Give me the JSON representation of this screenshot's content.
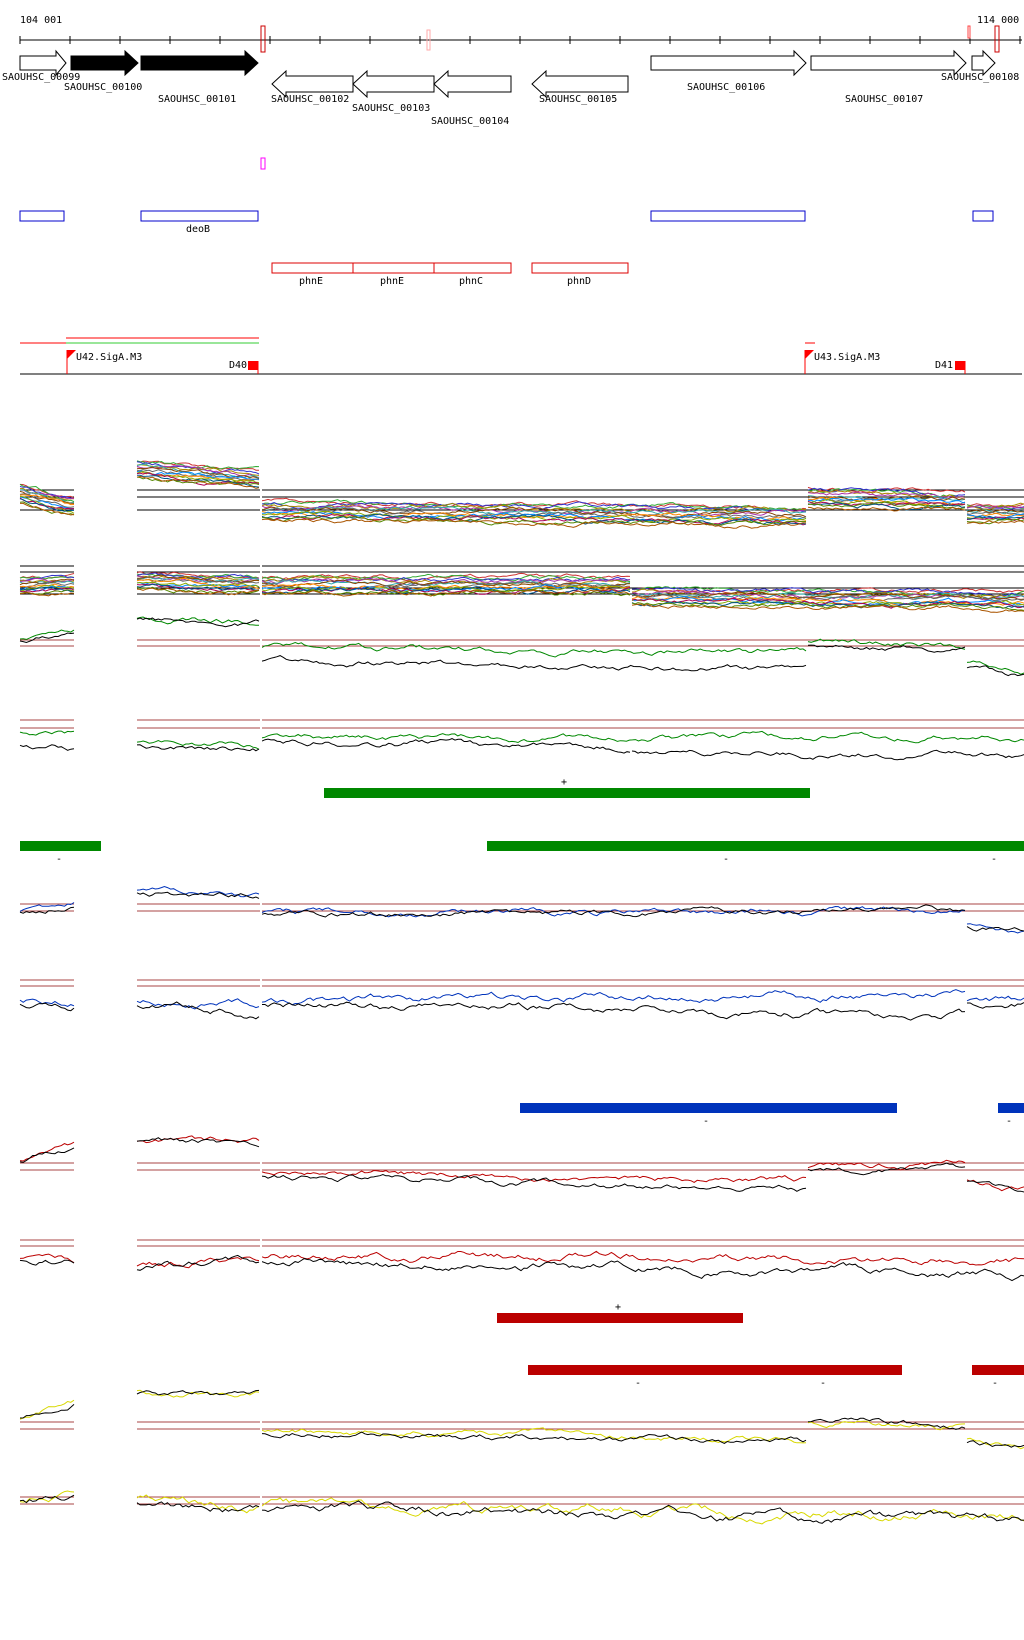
{
  "coordinates": {
    "start_label": "104 001",
    "end_label": "114 000"
  },
  "genes": [
    {
      "id": "SAOUHSC_00099",
      "strand": "+",
      "filled": false
    },
    {
      "id": "SAOUHSC_00100",
      "strand": "+",
      "filled": true
    },
    {
      "id": "SAOUHSC_00101",
      "strand": "+",
      "filled": true
    },
    {
      "id": "SAOUHSC_00102",
      "strand": "-",
      "filled": false
    },
    {
      "id": "SAOUHSC_00103",
      "strand": "-",
      "filled": false
    },
    {
      "id": "SAOUHSC_00104",
      "strand": "-",
      "filled": false
    },
    {
      "id": "SAOUHSC_00105",
      "strand": "-",
      "filled": false
    },
    {
      "id": "SAOUHSC_00106",
      "strand": "+",
      "filled": false
    },
    {
      "id": "SAOUHSC_00107",
      "strand": "+",
      "filled": false
    },
    {
      "id": "SAOUHSC_00108",
      "strand": "+",
      "filled": false
    }
  ],
  "blue_annotations": [
    "",
    "deoB",
    "",
    ""
  ],
  "red_annotations": [
    "phnE",
    "phnE",
    "phnC",
    "phnD"
  ],
  "promoters": [
    {
      "label": "U42.SigA.M3",
      "kind": "up"
    },
    {
      "label": "D40",
      "kind": "down"
    },
    {
      "label": "U43.SigA.M3",
      "kind": "up"
    },
    {
      "label": "D41",
      "kind": "down"
    }
  ],
  "segment_markers": {
    "green_plus": "+",
    "green_minus": "-",
    "blue_minus": "-",
    "red_plus": "+",
    "red_minus": "-"
  },
  "colors": {
    "green": "#008800",
    "blue": "#0033bb",
    "red": "#bb0000",
    "yellow": "#d8d800",
    "black": "#000000",
    "threshold": "#aa4444",
    "orf_outline": "#000000",
    "annotation_blue": "#0000cc",
    "annotation_red": "#dd0000",
    "promoter_red": "#ff0000",
    "magenta": "#ff00ff"
  }
}
